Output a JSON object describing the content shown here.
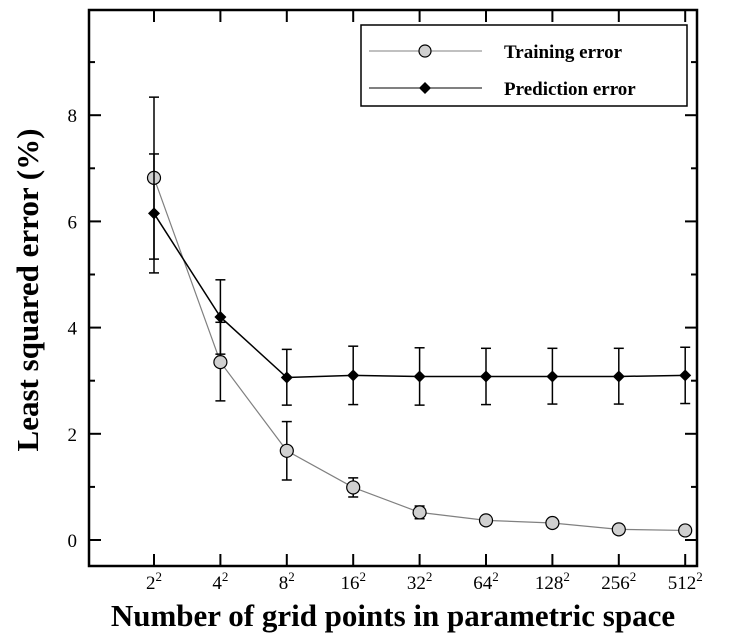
{
  "chart_data": {
    "type": "line",
    "xlabel": "Number of grid points in parametric space",
    "ylabel": "Least squared error (%)",
    "x_ticks": [
      {
        "base": "2",
        "exp": "2"
      },
      {
        "base": "4",
        "exp": "2"
      },
      {
        "base": "8",
        "exp": "2"
      },
      {
        "base": "16",
        "exp": "2"
      },
      {
        "base": "32",
        "exp": "2"
      },
      {
        "base": "64",
        "exp": "2"
      },
      {
        "base": "128",
        "exp": "2"
      },
      {
        "base": "256",
        "exp": "2"
      },
      {
        "base": "512",
        "exp": "2"
      }
    ],
    "y_ticks": [
      0,
      2,
      4,
      6,
      8
    ],
    "ylim": [
      -0.55,
      10
    ],
    "grid": false,
    "legend_position": "top-right",
    "series": [
      {
        "name": "Training error",
        "marker": "circle",
        "marker_color": "#d0d0d0",
        "line_color": "#808080",
        "values": [
          6.82,
          3.35,
          1.68,
          0.99,
          0.52,
          0.37,
          0.32,
          0.2,
          0.18
        ],
        "err_low": [
          1.53,
          0.73,
          0.55,
          0.18,
          0.12,
          0.08,
          0.08,
          0.07,
          0.06
        ],
        "err_high": [
          1.52,
          0.75,
          0.55,
          0.18,
          0.12,
          0.08,
          0.08,
          0.07,
          0.06
        ]
      },
      {
        "name": "Prediction error",
        "marker": "diamond",
        "marker_color": "#000000",
        "line_color": "#000000",
        "values": [
          6.15,
          4.2,
          3.06,
          3.1,
          3.08,
          3.08,
          3.08,
          3.08,
          3.1
        ],
        "err_low": [
          1.12,
          0.7,
          0.52,
          0.55,
          0.54,
          0.53,
          0.52,
          0.52,
          0.53
        ],
        "err_high": [
          1.12,
          0.7,
          0.53,
          0.55,
          0.54,
          0.53,
          0.53,
          0.53,
          0.53
        ]
      }
    ]
  }
}
